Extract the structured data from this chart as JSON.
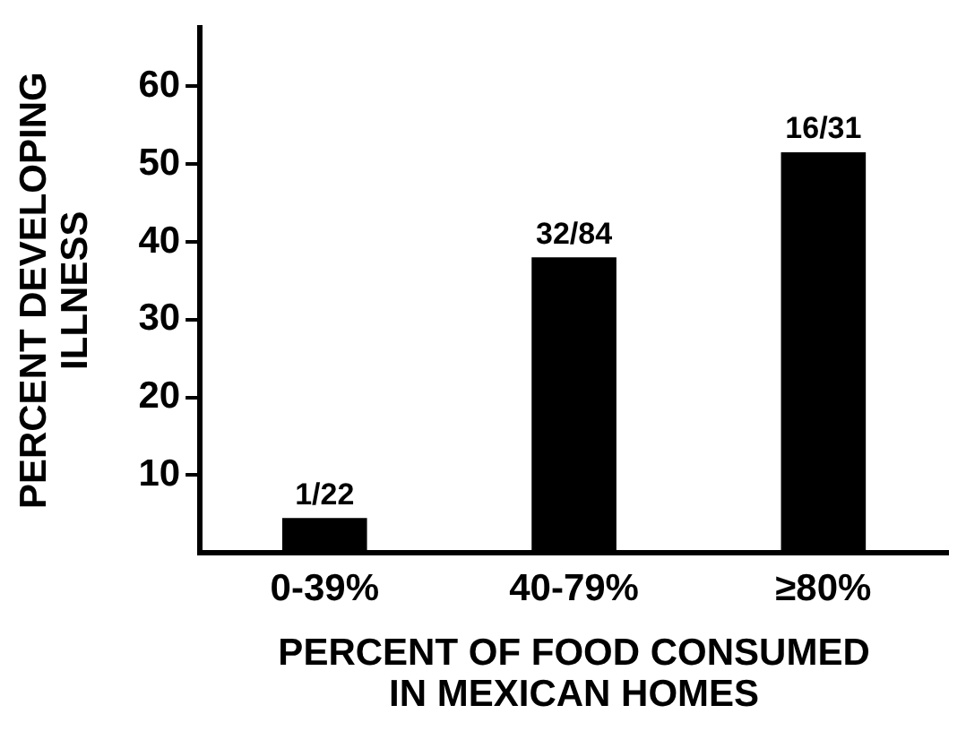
{
  "chart_data": {
    "type": "bar",
    "xlabel": "PERCENT OF FOOD CONSUMED\nIN MEXICAN HOMES",
    "ylabel": "PERCENT DEVELOPING\nILLNESS",
    "categories": [
      "0-39%",
      "40-79%",
      "≥80%"
    ],
    "values": [
      4.5,
      38,
      51.5
    ],
    "value_labels": [
      "1/22",
      "32/84",
      "16/31"
    ],
    "color": "#000000",
    "ylim": [
      0,
      67.5
    ],
    "yticks": [
      10,
      20,
      30,
      40,
      50,
      60
    ],
    "grid": false,
    "legend": false
  }
}
